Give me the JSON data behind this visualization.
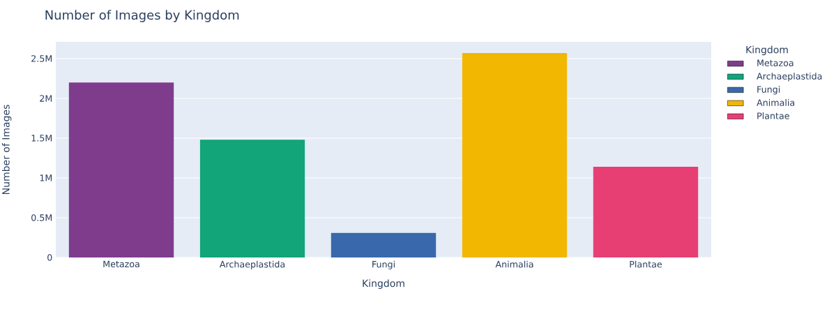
{
  "chart_data": {
    "type": "bar",
    "title": "Number of Images by Kingdom",
    "xlabel": "Kingdom",
    "ylabel": "Number of Images",
    "legend_title": "Kingdom",
    "categories": [
      "Metazoa",
      "Archaeplastida",
      "Fungi",
      "Animalia",
      "Plantae"
    ],
    "series": [
      {
        "name": "Metazoa",
        "color": "#7f3c8d",
        "values": [
          2200000,
          null,
          null,
          null,
          null
        ]
      },
      {
        "name": "Archaeplastida",
        "color": "#11a579",
        "values": [
          null,
          1480000,
          null,
          null,
          null
        ]
      },
      {
        "name": "Fungi",
        "color": "#3969ac",
        "values": [
          null,
          null,
          310000,
          null,
          null
        ]
      },
      {
        "name": "Animalia",
        "color": "#f2b701",
        "values": [
          null,
          null,
          null,
          2570000,
          null
        ]
      },
      {
        "name": "Plantae",
        "color": "#e73f74",
        "values": [
          null,
          null,
          null,
          null,
          1140000
        ]
      }
    ],
    "ylim": [
      0,
      2710000
    ],
    "yticks": [
      0,
      {
        "value": 500000,
        "label": "0.5M"
      },
      {
        "value": 1000000,
        "label": "1M"
      },
      {
        "value": 1500000,
        "label": "1.5M"
      },
      {
        "value": 2000000,
        "label": "2M"
      },
      {
        "value": 2500000,
        "label": "2.5M"
      }
    ],
    "grid": "y",
    "legend": "top right"
  }
}
